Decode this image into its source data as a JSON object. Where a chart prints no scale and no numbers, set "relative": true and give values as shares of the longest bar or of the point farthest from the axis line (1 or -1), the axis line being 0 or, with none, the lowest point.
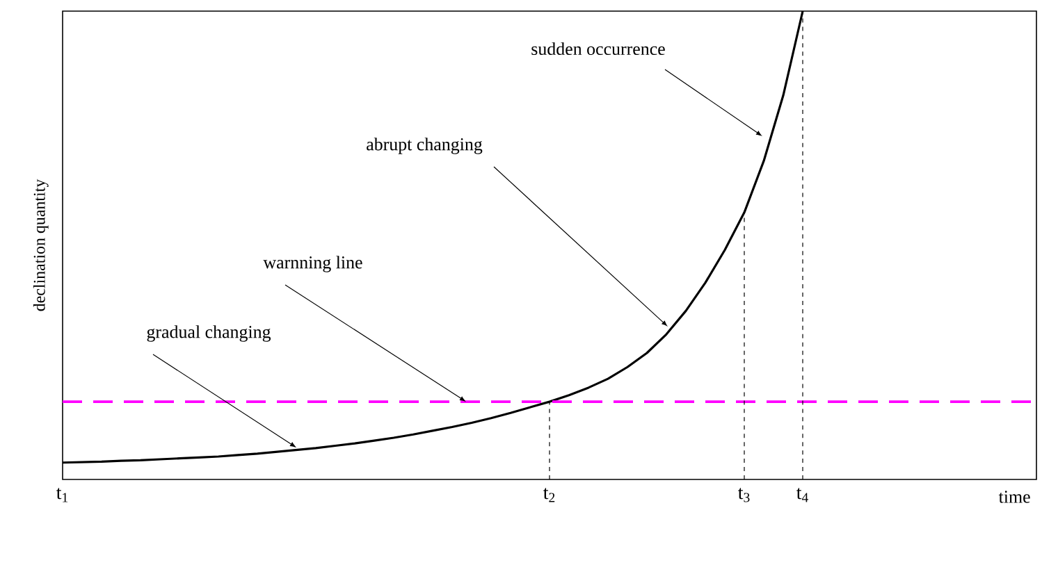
{
  "chart_data": {
    "type": "line",
    "relative": true,
    "xlabel": "time",
    "ylabel": "declination quantity",
    "categories": [
      "t$_{1}$",
      null,
      null,
      null,
      null,
      null,
      null,
      null,
      null,
      null,
      null,
      null,
      null,
      null,
      null,
      null,
      null,
      null,
      null,
      null,
      null,
      null,
      null,
      null,
      null,
      "t$_{2}$",
      null,
      null,
      null,
      null,
      null,
      null,
      null,
      null,
      null,
      "t$_{3}$",
      null,
      null,
      "t$_{4}$",
      null,
      null,
      null,
      null,
      null,
      null,
      null,
      null,
      null,
      null,
      null,
      null
    ],
    "tick_labels": "x",
    "marker": "none",
    "series": [
      {
        "color": "#000000",
        "line_style": "solid",
        "values": [
          0.036,
          0.037,
          0.038,
          0.04,
          0.041,
          0.043,
          0.045,
          0.047,
          0.049,
          0.052,
          0.055,
          0.059,
          0.063,
          0.067,
          0.072,
          0.077,
          0.083,
          0.089,
          0.096,
          0.104,
          0.112,
          0.121,
          0.131,
          0.142,
          0.154,
          0.166,
          0.18,
          0.196,
          0.215,
          0.24,
          0.27,
          0.31,
          0.36,
          0.42,
          0.49,
          0.57,
          0.68,
          0.82,
          1.0,
          null,
          null,
          null,
          null,
          null,
          null,
          null,
          null,
          null,
          null,
          null,
          null
        ]
      }
    ],
    "ref_lines": [
      {
        "axis": "y",
        "value": 0.166,
        "color": "#ff00ff",
        "line_style": "dashed"
      },
      {
        "axis": "x",
        "value": "t$_{2}$",
        "color": "#000000",
        "line_style": "dashed"
      },
      {
        "axis": "x",
        "value": "t$_{3}$",
        "color": "#000000",
        "line_style": "dashed"
      },
      {
        "axis": "x",
        "value": "t$_{4}$",
        "color": "#000000",
        "line_style": "dashed"
      }
    ],
    "annotations": [
      "gradual changing",
      "warnning line",
      "abrupt changing",
      "sudden occurrence"
    ]
  }
}
